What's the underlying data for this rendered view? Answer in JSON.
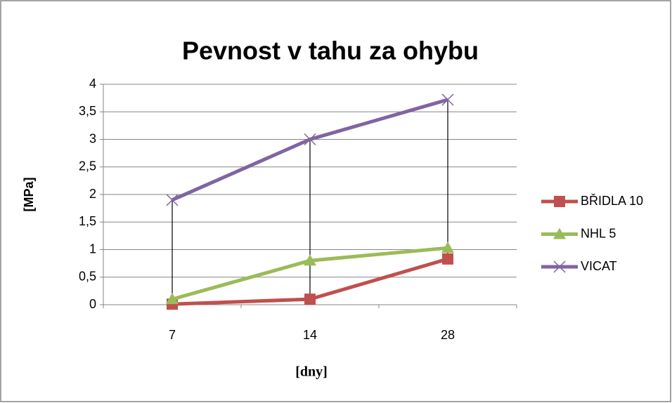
{
  "chart_data": {
    "type": "line",
    "title": "Pevnost v tahu za ohybu",
    "x_label": "[dny]",
    "y_label": "[MPa]",
    "categories": [
      "7",
      "14",
      "28"
    ],
    "series": [
      {
        "name": "BŘIDLA 10",
        "color": "#c0504d",
        "marker": "square",
        "values": [
          0.01,
          0.1,
          0.83
        ]
      },
      {
        "name": "NHL 5",
        "color": "#9bbb59",
        "marker": "triangle",
        "values": [
          0.1,
          0.8,
          1.03
        ]
      },
      {
        "name": "VICAT",
        "color": "#8064a2",
        "marker": "x",
        "values": [
          1.9,
          3.0,
          3.72
        ]
      }
    ],
    "ylim": [
      0,
      4
    ],
    "yticks": [
      0,
      {
        "value": 0.5,
        "label": "0,5"
      },
      1,
      {
        "value": 1.5,
        "label": "1,5"
      },
      2,
      {
        "value": 2.5,
        "label": "2,5"
      },
      3,
      {
        "value": 3.5,
        "label": "3,5"
      },
      4
    ],
    "grid": true,
    "drop_lines": true,
    "legend": "right"
  }
}
